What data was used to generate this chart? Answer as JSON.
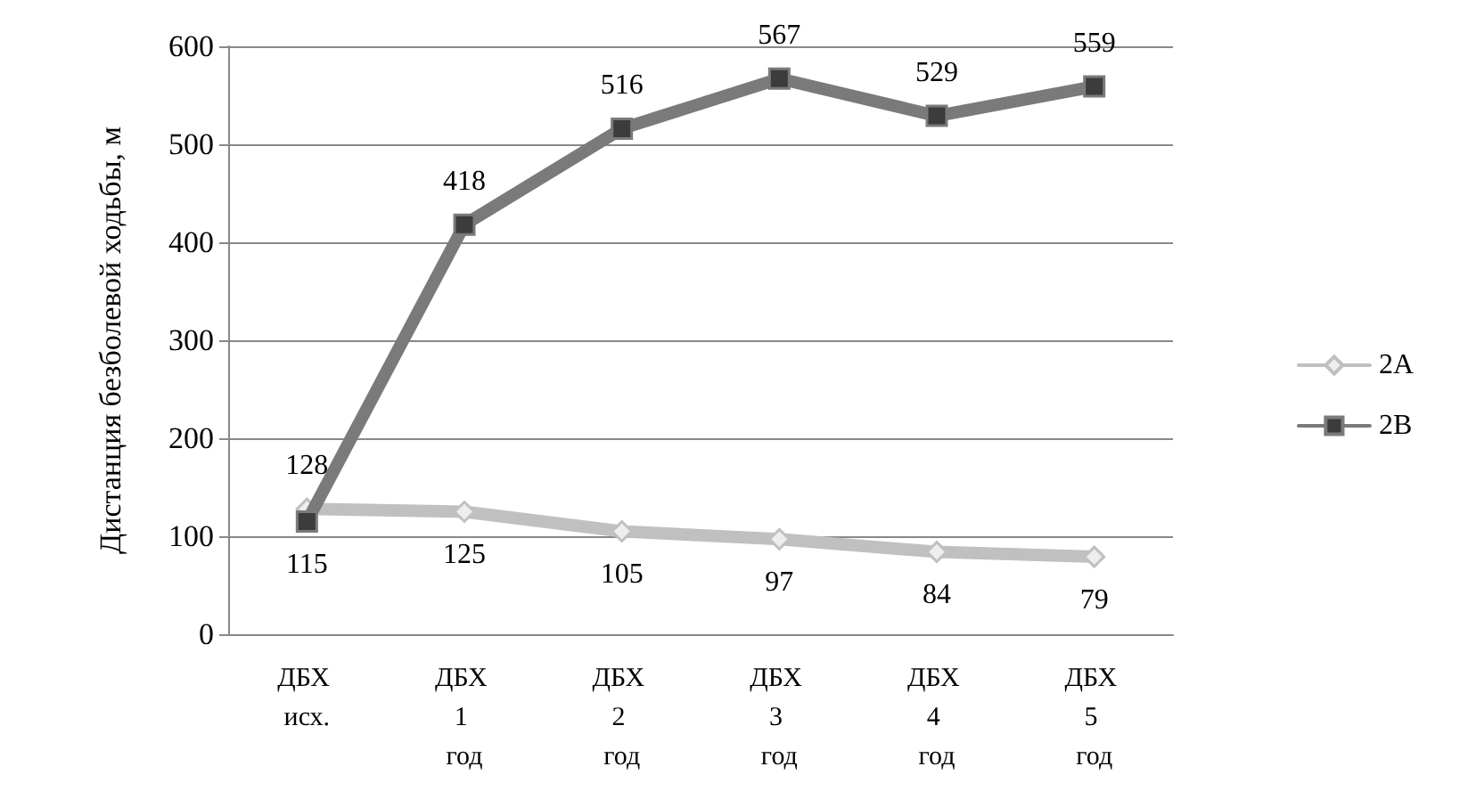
{
  "chart_data": {
    "type": "line",
    "ylabel": "Дистанция безболевой ходьбы, м",
    "categories": [
      "ДБХ исх.",
      "ДБХ 1 год",
      "ДБХ 2 год",
      "ДБХ 3 год",
      "ДБХ 4 год",
      "ДБХ 5 год"
    ],
    "series": [
      {
        "name": "2A",
        "color": "#c0c0c0",
        "marker": "diamond",
        "values": [
          128,
          125,
          105,
          97,
          84,
          79
        ]
      },
      {
        "name": "2B",
        "color": "#7a7a7a",
        "marker": "square",
        "values": [
          115,
          418,
          516,
          567,
          529,
          559
        ]
      }
    ],
    "ylim": [
      0,
      600
    ],
    "yticks": [
      0,
      100,
      200,
      300,
      400,
      500,
      600
    ],
    "grid": "y",
    "legend": "right",
    "data_labels": true
  }
}
